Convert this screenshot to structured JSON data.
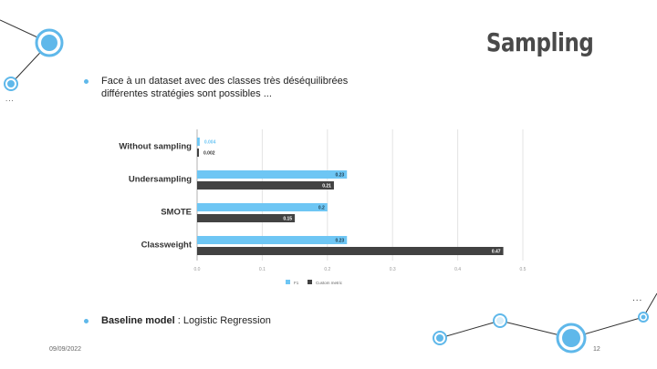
{
  "slide": {
    "title": "Sampling",
    "bullets": [
      {
        "text": "Face à un dataset avec des classes très déséquilibrées différentes stratégies sont possibles ..."
      },
      {
        "strong": "Baseline model",
        "rest": " : Logistic Regression"
      }
    ],
    "footer": {
      "date": "09/09/2022",
      "page": "12"
    },
    "ellipsis_top": "...",
    "ellipsis_right": "...",
    "colors": {
      "accent": "#5fb8ea",
      "title": "#4a4a4a",
      "series_dark": "#424242",
      "series_light": "#6ec6f4"
    }
  },
  "chart_data": {
    "type": "bar",
    "orientation": "horizontal",
    "categories": [
      "Without sampling",
      "Undersampling",
      "SMOTE",
      "Classweight"
    ],
    "series": [
      {
        "name": "F1",
        "values": [
          0.004,
          0.23,
          0.2,
          0.23
        ],
        "labels": [
          "0.004",
          "0.23",
          "0.2",
          "0.23"
        ],
        "color": "#6ec6f4"
      },
      {
        "name": "Custom metric",
        "values": [
          0.002,
          0.21,
          0.15,
          0.47
        ],
        "labels": [
          "0.002",
          "0.21",
          "0.15",
          "0.47"
        ],
        "color": "#424242"
      }
    ],
    "xlim": [
      0,
      0.5
    ],
    "xticks": [
      "0.0",
      "0.1",
      "0.2",
      "0.3",
      "0.4",
      "0.5"
    ],
    "xtick_values": [
      0,
      0.1,
      0.2,
      0.3,
      0.4,
      0.5
    ],
    "grid": true,
    "legend": "bottom"
  }
}
